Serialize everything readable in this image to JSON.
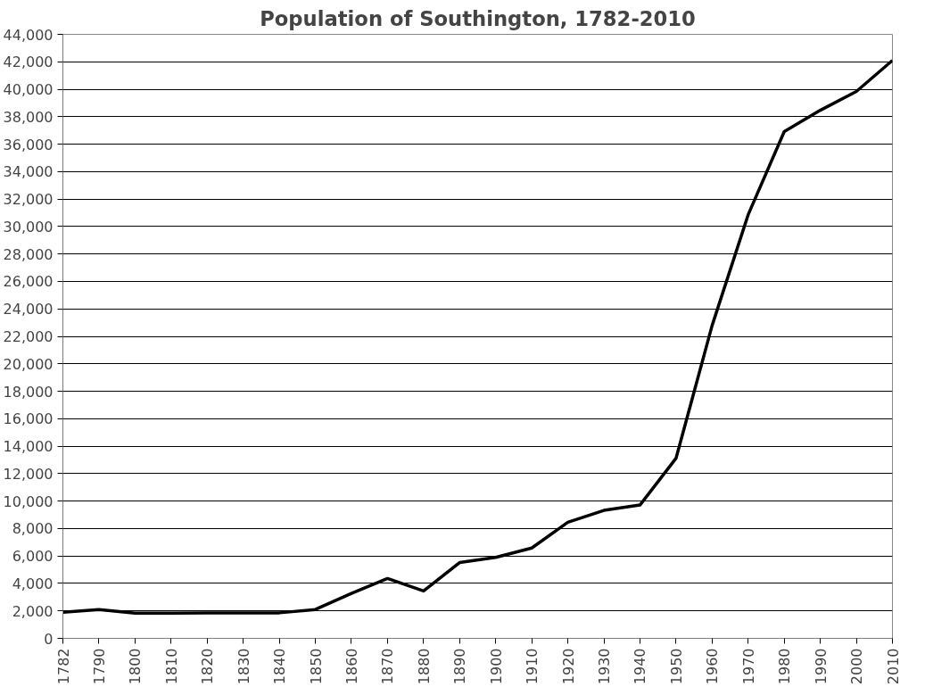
{
  "chart_data": {
    "type": "line",
    "title": "Population of Southington, 1782-2010",
    "categories": [
      "1782",
      "1790",
      "1800",
      "1810",
      "1820",
      "1830",
      "1840",
      "1850",
      "1860",
      "1870",
      "1880",
      "1890",
      "1900",
      "1910",
      "1920",
      "1930",
      "1940",
      "1950",
      "1960",
      "1970",
      "1980",
      "1990",
      "2000",
      "2010"
    ],
    "series": [
      {
        "color": "#000000",
        "values": [
          1900,
          2100,
          1840,
          1840,
          1860,
          1860,
          1860,
          2100,
          3270,
          4360,
          3450,
          5520,
          5900,
          6580,
          8460,
          9320,
          9710,
          13120,
          22790,
          30860,
          36920,
          38470,
          39840,
          42100
        ]
      }
    ],
    "ylim": [
      0,
      44000
    ],
    "yticks": [
      {
        "value": 0,
        "label": "0"
      },
      {
        "value": 2000,
        "label": "2,000"
      },
      {
        "value": 4000,
        "label": "4,000"
      },
      {
        "value": 6000,
        "label": "6,000"
      },
      {
        "value": 8000,
        "label": "8,000"
      },
      {
        "value": 10000,
        "label": "10,000"
      },
      {
        "value": 12000,
        "label": "12,000"
      },
      {
        "value": 14000,
        "label": "14,000"
      },
      {
        "value": 16000,
        "label": "16,000"
      },
      {
        "value": 18000,
        "label": "18,000"
      },
      {
        "value": 20000,
        "label": "20,000"
      },
      {
        "value": 22000,
        "label": "22,000"
      },
      {
        "value": 24000,
        "label": "24,000"
      },
      {
        "value": 26000,
        "label": "26,000"
      },
      {
        "value": 28000,
        "label": "28,000"
      },
      {
        "value": 30000,
        "label": "30,000"
      },
      {
        "value": 32000,
        "label": "32,000"
      },
      {
        "value": 34000,
        "label": "34,000"
      },
      {
        "value": 36000,
        "label": "36,000"
      },
      {
        "value": 38000,
        "label": "38,000"
      },
      {
        "value": 40000,
        "label": "40,000"
      },
      {
        "value": 42000,
        "label": "42,000"
      },
      {
        "value": 44000,
        "label": "44,000"
      }
    ],
    "grid": "y",
    "marker": "none",
    "line_style": "solid"
  }
}
